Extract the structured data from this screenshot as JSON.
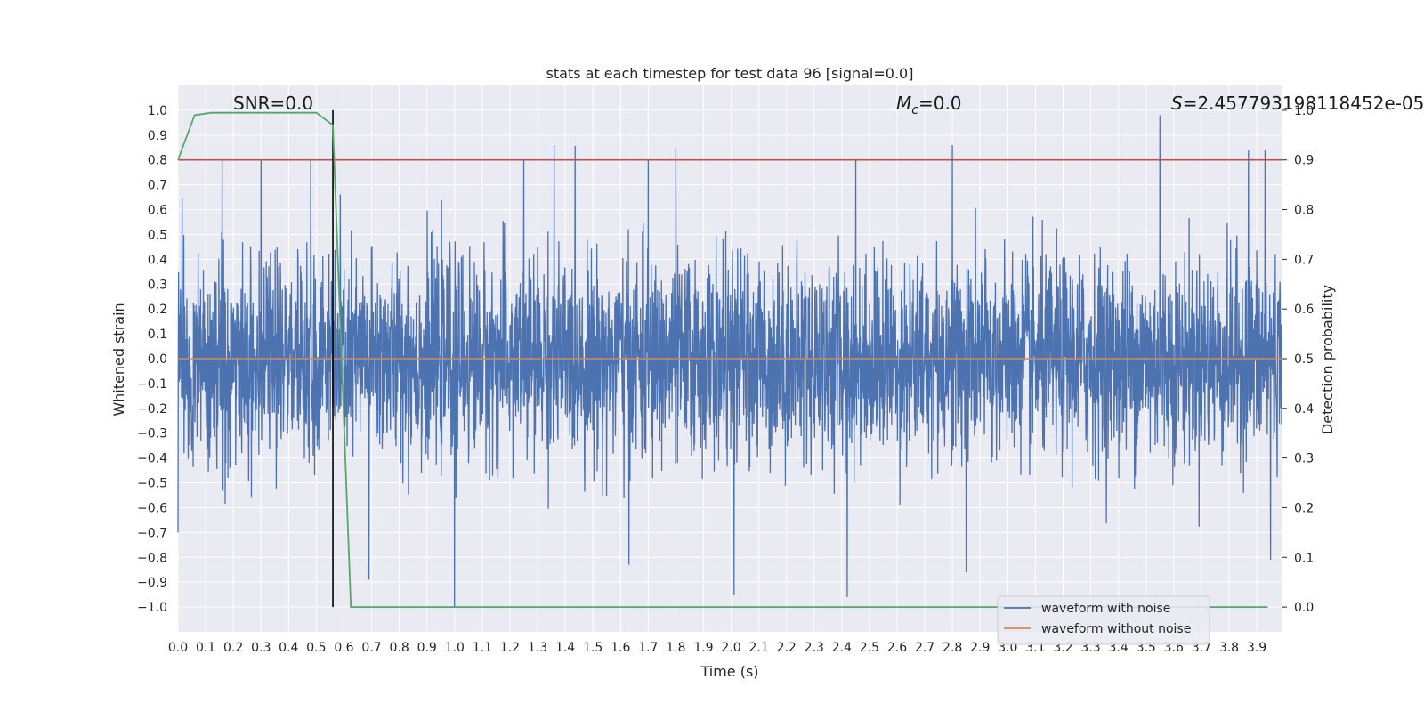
{
  "chart_data": {
    "type": "line",
    "title": "stats at each timestep for test data 96 [signal=0.0]",
    "xlabel": "Time (s)",
    "ylabel": "Whitened strain",
    "y2label": "Detection probability",
    "xlim": [
      0.0,
      3.99
    ],
    "ylim": [
      -1.1,
      1.1
    ],
    "y2lim": [
      -0.05,
      1.05
    ],
    "xticks": [
      0.0,
      0.1,
      0.2,
      0.3,
      0.4,
      0.5,
      0.6,
      0.7,
      0.8,
      0.9,
      1.0,
      1.1,
      1.2,
      1.3,
      1.4,
      1.5,
      1.6,
      1.7,
      1.8,
      1.9,
      2.0,
      2.1,
      2.2,
      2.3,
      2.4,
      2.5,
      2.6,
      2.7,
      2.8,
      2.9,
      3.0,
      3.1,
      3.2,
      3.3,
      3.4,
      3.5,
      3.6,
      3.7,
      3.8,
      3.9
    ],
    "yticks": [
      -1.0,
      -0.9,
      -0.8,
      -0.7,
      -0.6,
      -0.5,
      -0.4,
      -0.3,
      -0.2,
      -0.1,
      0.0,
      0.1,
      0.2,
      0.3,
      0.4,
      0.5,
      0.6,
      0.7,
      0.8,
      0.9,
      1.0
    ],
    "y2ticks": [
      0.0,
      0.1,
      0.2,
      0.3,
      0.4,
      0.5,
      0.6,
      0.7,
      0.8,
      0.9,
      1.0
    ],
    "grid": true,
    "legend_position": "lower-right",
    "annotations": {
      "snr": "SNR=0.0",
      "mc_symbol": "M",
      "mc_sub": "c",
      "mc_value": "=0.0",
      "s_symbol": "S",
      "s_value": "=2.457793198118452e-05"
    },
    "series": [
      {
        "name": "waveform with noise",
        "color": "#4c72b0",
        "axis": "left",
        "kind": "noise",
        "amplitude_std": 0.2,
        "clip": [
          -1.0,
          1.0
        ],
        "n_samples": 4000,
        "notable_peaks": [
          [
            0.0,
            -0.7
          ],
          [
            0.015,
            0.65
          ],
          [
            0.16,
            0.8
          ],
          [
            0.3,
            0.8
          ],
          [
            0.48,
            0.8
          ],
          [
            0.69,
            -0.89
          ],
          [
            1.0,
            -1.0
          ],
          [
            1.25,
            0.8
          ],
          [
            1.36,
            0.86
          ],
          [
            1.63,
            -0.83
          ],
          [
            1.7,
            0.8
          ],
          [
            1.8,
            0.85
          ],
          [
            2.01,
            -0.95
          ],
          [
            2.42,
            -0.96
          ],
          [
            2.45,
            0.8
          ],
          [
            2.8,
            0.86
          ],
          [
            2.85,
            -0.86
          ],
          [
            3.55,
            0.98
          ],
          [
            3.87,
            0.84
          ],
          [
            3.93,
            0.84
          ],
          [
            3.95,
            -0.81
          ]
        ]
      },
      {
        "name": "waveform without noise",
        "color": "#dd8452",
        "axis": "left",
        "x": [
          0.0,
          3.99
        ],
        "y": [
          0.0,
          0.0
        ]
      },
      {
        "name": "detection probability",
        "color": "#55a868",
        "axis": "right",
        "x": [
          0.0,
          0.06,
          0.12,
          0.2,
          0.3,
          0.4,
          0.5,
          0.56,
          0.625,
          0.7,
          1.0,
          2.0,
          3.0,
          3.94
        ],
        "y": [
          0.9,
          0.99,
          0.995,
          0.995,
          0.995,
          0.995,
          0.995,
          0.97,
          0.0,
          0.0,
          0.0,
          0.0,
          0.0,
          0.0
        ]
      }
    ],
    "reference_lines": [
      {
        "name": "threshold",
        "color": "#c44e52",
        "axis": "right",
        "orientation": "horizontal",
        "value": 0.9
      },
      {
        "name": "event-marker",
        "color": "#000000",
        "axis": "left",
        "orientation": "vertical",
        "value": 0.56,
        "range": [
          -1.0,
          1.0
        ]
      }
    ]
  }
}
